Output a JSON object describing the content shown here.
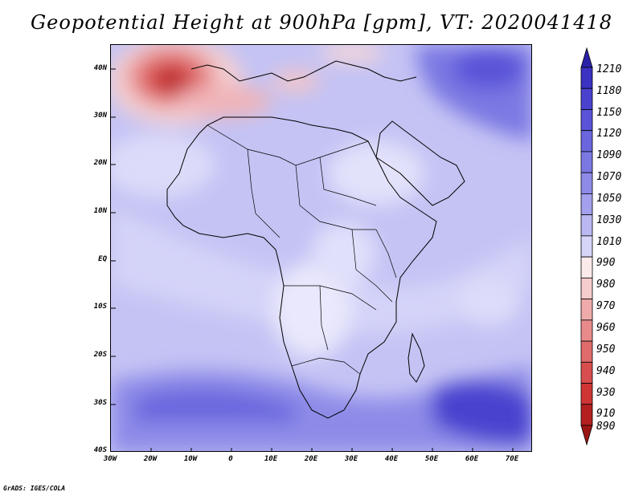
{
  "title": "Geopotential Height at 900hPa [gpm], VT: 2020041418",
  "credit": "GrADS: IGES/COLA",
  "map": {
    "variable": "Geopotential Height",
    "level_hpa": 900,
    "units": "gpm",
    "valid_time": "2020041418",
    "lon_range": [
      -30,
      75
    ],
    "lat_range": [
      -40,
      45
    ],
    "lon_labels": [
      "30W",
      "20W",
      "10W",
      "0",
      "10E",
      "20E",
      "30E",
      "40E",
      "50E",
      "60E",
      "70E"
    ],
    "lat_labels": [
      "40N",
      "30N",
      "20N",
      "10N",
      "EQ",
      "10S",
      "20S",
      "30S",
      "40S"
    ],
    "features": [
      {
        "name": "high-anomaly-low-center",
        "note": "strong red minimum west of Morocco"
      },
      {
        "name": "southern-indian-ocean-high",
        "note": "deep blue region"
      }
    ]
  },
  "colorbar": {
    "labels": [
      "1210",
      "1180",
      "1150",
      "1120",
      "1090",
      "1070",
      "1050",
      "1030",
      "1010",
      "990",
      "980",
      "970",
      "960",
      "950",
      "940",
      "930",
      "910",
      "890"
    ],
    "colors": [
      "#2b22a8",
      "#3b31c2",
      "#4a42cf",
      "#5a53d8",
      "#6b66de",
      "#7c78e3",
      "#8e8be8",
      "#a3a0ed",
      "#bab8f2",
      "#d6d5f8",
      "#fbeaea",
      "#f6cccc",
      "#efaaaa",
      "#e88a8a",
      "#e06b6b",
      "#d84d4d",
      "#cf3535",
      "#b42020",
      "#9c1515"
    ]
  }
}
